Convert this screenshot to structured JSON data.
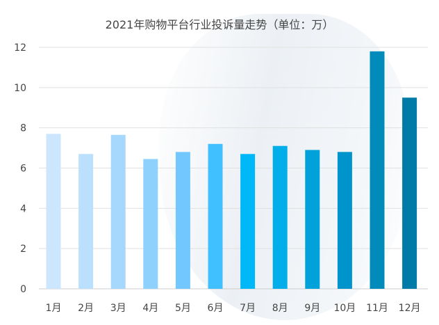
{
  "chart_data": {
    "type": "bar",
    "title": "2021年购物平台行业投诉量走势（单位：万）",
    "xlabel": "",
    "ylabel": "",
    "categories": [
      "1月",
      "2月",
      "3月",
      "4月",
      "5月",
      "6月",
      "7月",
      "8月",
      "9月",
      "10月",
      "11月",
      "12月"
    ],
    "values": [
      7.7,
      6.7,
      7.65,
      6.45,
      6.8,
      7.2,
      6.7,
      7.1,
      6.9,
      6.8,
      11.8,
      9.5
    ],
    "colors": [
      "#cce6fd",
      "#bae0fe",
      "#a6d8fd",
      "#8ed1fd",
      "#72c8fe",
      "#40c0fe",
      "#00b8f8",
      "#02aeea",
      "#00a2d9",
      "#0094cc",
      "#008bbb",
      "#007ba8"
    ],
    "ylim": [
      0,
      12
    ],
    "yticks": [
      0,
      2,
      4,
      6,
      8,
      10,
      12
    ],
    "grid": true,
    "legend": "none"
  }
}
